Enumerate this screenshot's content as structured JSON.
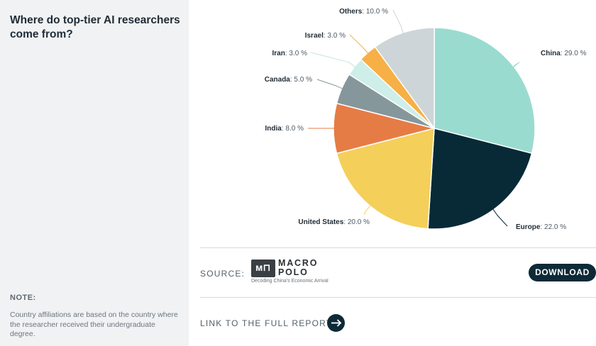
{
  "sidebar": {
    "title": "Where do top-tier AI researchers come from?",
    "note_label": "NOTE:",
    "note_text": "Country affiliations are based on the country where the researcher received their undergraduate degree."
  },
  "footer": {
    "source_label": "SOURCE:",
    "logo_word_1": "MACRO",
    "logo_word_2": "POLO",
    "logo_tagline": "Decoding China's Economic Arrival",
    "download_label": "DOWNLOAD",
    "link_label": "LINK TO THE FULL REPORT"
  },
  "icons": {
    "logo": "macropolo-logo-icon",
    "link": "arrow-right-icon"
  },
  "chart_data": {
    "type": "pie",
    "title": "",
    "unit": "%",
    "slices": [
      {
        "label": "China",
        "value": 29.0,
        "display": "29.0 %",
        "color": "#9adbd0"
      },
      {
        "label": "Europe",
        "value": 22.0,
        "display": "22.0 %",
        "color": "#072a36"
      },
      {
        "label": "United States",
        "value": 20.0,
        "display": "20.0 %",
        "color": "#f4cf5a"
      },
      {
        "label": "India",
        "value": 8.0,
        "display": "8.0 %",
        "color": "#e67c45"
      },
      {
        "label": "Canada",
        "value": 5.0,
        "display": "5.0 %",
        "color": "#86979c"
      },
      {
        "label": "Iran",
        "value": 3.0,
        "display": "3.0 %",
        "color": "#cdeee9"
      },
      {
        "label": "Israel",
        "value": 3.0,
        "display": "3.0 %",
        "color": "#f7b045"
      },
      {
        "label": "Others",
        "value": 10.0,
        "display": "10.0 %",
        "color": "#cdd5d8"
      }
    ]
  }
}
